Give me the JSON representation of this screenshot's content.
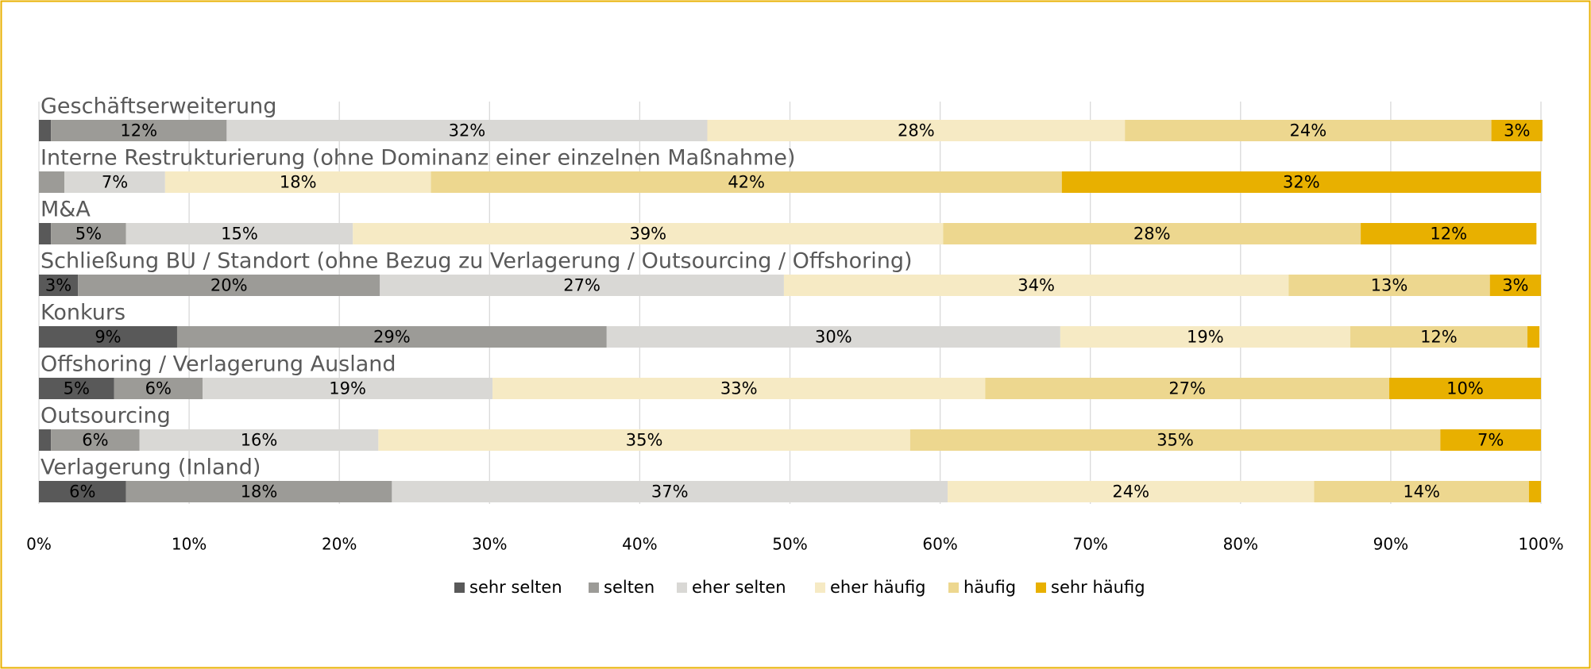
{
  "chart_data": {
    "type": "stacked-bar-horizontal",
    "categories": [
      "Geschäftserweiterung",
      "Interne Restrukturierung (ohne Dominanz einer einzelnen Maßnahme)",
      "M&A",
      "Schließung BU / Standort (ohne Bezug zu Verlagerung / Outsourcing / Offshoring)",
      "Konkurs",
      "Offshoring / Verlagerung Ausland",
      "Outsourcing",
      "Verlagerung (Inland)"
    ],
    "series": [
      {
        "name": "sehr selten",
        "color": "#595959",
        "values": [
          0.8,
          0,
          0.8,
          2.6,
          9.2,
          5.0,
          0.8,
          5.8
        ],
        "value_labels": [
          null,
          null,
          null,
          "3%",
          "9%",
          "5%",
          null,
          "6%"
        ]
      },
      {
        "name": "selten",
        "color": "#9c9b97",
        "values": [
          11.7,
          1.7,
          5.0,
          20.1,
          28.6,
          5.9,
          5.9,
          17.7
        ],
        "value_labels": [
          "12%",
          null,
          "5%",
          "20%",
          "29%",
          "6%",
          "6%",
          "18%"
        ]
      },
      {
        "name": "eher selten",
        "color": "#d9d8d5",
        "values": [
          32.0,
          6.7,
          15.1,
          26.9,
          30.2,
          19.3,
          15.9,
          37.0
        ],
        "value_labels": [
          "32%",
          "7%",
          "15%",
          "27%",
          "30%",
          "19%",
          "16%",
          "37%"
        ]
      },
      {
        "name": "eher häufig",
        "color": "#f6eac4",
        "values": [
          27.8,
          17.7,
          39.3,
          33.6,
          19.3,
          32.8,
          35.4,
          24.4
        ],
        "value_labels": [
          "28%",
          "18%",
          "39%",
          "34%",
          "19%",
          "33%",
          "35%",
          "24%"
        ]
      },
      {
        "name": "häufig",
        "color": "#edd78f",
        "values": [
          24.4,
          42.0,
          27.8,
          13.4,
          11.8,
          26.9,
          35.3,
          14.3
        ],
        "value_labels": [
          "24%",
          "42%",
          "28%",
          "13%",
          "12%",
          "27%",
          "35%",
          "14%"
        ]
      },
      {
        "name": "sehr häufig",
        "color": "#e8b000",
        "values": [
          3.4,
          31.9,
          11.7,
          3.4,
          0.8,
          10.1,
          6.7,
          0.8
        ],
        "value_labels": [
          "3%",
          "32%",
          "12%",
          "3%",
          null,
          "10%",
          "7%",
          null
        ]
      }
    ],
    "xlim": [
      0,
      100
    ],
    "xticks": [
      {
        "value": 0,
        "label": "0%"
      },
      {
        "value": 10,
        "label": "10%"
      },
      {
        "value": 20,
        "label": "20%"
      },
      {
        "value": 30,
        "label": "30%"
      },
      {
        "value": 40,
        "label": "40%"
      },
      {
        "value": 50,
        "label": "50%"
      },
      {
        "value": 60,
        "label": "60%"
      },
      {
        "value": 70,
        "label": "70%"
      },
      {
        "value": 80,
        "label": "80%"
      },
      {
        "value": 90,
        "label": "90%"
      },
      {
        "value": 100,
        "label": "100%"
      }
    ],
    "grid": true,
    "legend": "bottom"
  }
}
